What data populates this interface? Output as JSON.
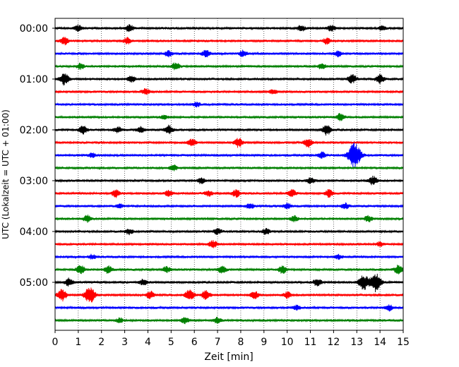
{
  "chart_data": {
    "type": "line",
    "subtype": "helicorder",
    "title": "",
    "xlabel": "Zeit  [min]",
    "ylabel": "UTC (Lokalzeit = UTC + 01:00)",
    "xlim": [
      0,
      15
    ],
    "x_ticks": [
      0,
      1,
      2,
      3,
      4,
      5,
      6,
      7,
      8,
      9,
      10,
      11,
      12,
      13,
      14,
      15
    ],
    "x_tick_labels": [
      "0",
      "1",
      "2",
      "3",
      "4",
      "5",
      "6",
      "7",
      "8",
      "9",
      "10",
      "11",
      "12",
      "13",
      "14",
      "15"
    ],
    "y_tick_labels": [
      "00:00",
      "01:00",
      "02:00",
      "03:00",
      "04:00",
      "05:00"
    ],
    "rows_per_hour": 4,
    "trace_minutes": 15,
    "vertical_grid": "dotted",
    "trace_colors": [
      "#000000",
      "#ff0000",
      "#0000ff",
      "#008000"
    ],
    "traces": [
      {
        "index": 0,
        "color": "#000000",
        "events": [
          {
            "t": 1.0,
            "amp": 0.4
          },
          {
            "t": 3.2,
            "amp": 0.5
          },
          {
            "t": 10.6,
            "amp": 0.4
          },
          {
            "t": 11.9,
            "amp": 0.4
          },
          {
            "t": 14.1,
            "amp": 0.3
          }
        ]
      },
      {
        "index": 1,
        "color": "#ff0000",
        "events": [
          {
            "t": 0.4,
            "amp": 0.5
          },
          {
            "t": 3.1,
            "amp": 0.4
          },
          {
            "t": 11.7,
            "amp": 0.4
          }
        ]
      },
      {
        "index": 2,
        "color": "#0000ff",
        "events": [
          {
            "t": 4.9,
            "amp": 0.4
          },
          {
            "t": 6.5,
            "amp": 0.5
          },
          {
            "t": 8.1,
            "amp": 0.4
          },
          {
            "t": 12.2,
            "amp": 0.4
          }
        ]
      },
      {
        "index": 3,
        "color": "#008000",
        "events": [
          {
            "t": 1.1,
            "amp": 0.4
          },
          {
            "t": 5.2,
            "amp": 0.5
          },
          {
            "t": 11.5,
            "amp": 0.4
          }
        ]
      },
      {
        "index": 4,
        "color": "#000000",
        "events": [
          {
            "t": 0.4,
            "amp": 0.8
          },
          {
            "t": 3.3,
            "amp": 0.4
          },
          {
            "t": 12.8,
            "amp": 0.6
          },
          {
            "t": 14.0,
            "amp": 0.6
          }
        ]
      },
      {
        "index": 5,
        "color": "#ff0000",
        "events": [
          {
            "t": 3.9,
            "amp": 0.4
          },
          {
            "t": 9.4,
            "amp": 0.3
          }
        ]
      },
      {
        "index": 6,
        "color": "#0000ff",
        "events": [
          {
            "t": 6.1,
            "amp": 0.3
          }
        ]
      },
      {
        "index": 7,
        "color": "#008000",
        "events": [
          {
            "t": 12.3,
            "amp": 0.5
          },
          {
            "t": 4.7,
            "amp": 0.3
          }
        ]
      },
      {
        "index": 8,
        "color": "#000000",
        "events": [
          {
            "t": 1.2,
            "amp": 0.6
          },
          {
            "t": 4.9,
            "amp": 0.6
          },
          {
            "t": 11.7,
            "amp": 0.7
          },
          {
            "t": 3.7,
            "amp": 0.4
          },
          {
            "t": 2.7,
            "amp": 0.4
          }
        ]
      },
      {
        "index": 9,
        "color": "#ff0000",
        "events": [
          {
            "t": 5.9,
            "amp": 0.5
          },
          {
            "t": 7.9,
            "amp": 0.6
          },
          {
            "t": 10.9,
            "amp": 0.6
          }
        ]
      },
      {
        "index": 10,
        "color": "#0000ff",
        "events": [
          {
            "t": 12.9,
            "amp": 1.8
          },
          {
            "t": 11.5,
            "amp": 0.4
          },
          {
            "t": 1.6,
            "amp": 0.3
          }
        ]
      },
      {
        "index": 11,
        "color": "#008000",
        "events": [
          {
            "t": 5.1,
            "amp": 0.4
          }
        ]
      },
      {
        "index": 12,
        "color": "#000000",
        "events": [
          {
            "t": 6.3,
            "amp": 0.4
          },
          {
            "t": 13.7,
            "amp": 0.6
          },
          {
            "t": 11.0,
            "amp": 0.4
          }
        ]
      },
      {
        "index": 13,
        "color": "#ff0000",
        "events": [
          {
            "t": 2.6,
            "amp": 0.5
          },
          {
            "t": 4.9,
            "amp": 0.4
          },
          {
            "t": 7.8,
            "amp": 0.5
          },
          {
            "t": 10.2,
            "amp": 0.5
          },
          {
            "t": 11.8,
            "amp": 0.5
          },
          {
            "t": 6.6,
            "amp": 0.4
          }
        ]
      },
      {
        "index": 14,
        "color": "#0000ff",
        "events": [
          {
            "t": 8.4,
            "amp": 0.4
          },
          {
            "t": 10.0,
            "amp": 0.4
          },
          {
            "t": 12.5,
            "amp": 0.4
          },
          {
            "t": 2.8,
            "amp": 0.3
          }
        ]
      },
      {
        "index": 15,
        "color": "#008000",
        "events": [
          {
            "t": 1.4,
            "amp": 0.5
          },
          {
            "t": 10.3,
            "amp": 0.4
          },
          {
            "t": 13.5,
            "amp": 0.4
          }
        ]
      },
      {
        "index": 16,
        "color": "#000000",
        "events": [
          {
            "t": 3.2,
            "amp": 0.4
          },
          {
            "t": 7.0,
            "amp": 0.4
          },
          {
            "t": 9.1,
            "amp": 0.4
          }
        ]
      },
      {
        "index": 17,
        "color": "#ff0000",
        "events": [
          {
            "t": 6.8,
            "amp": 0.5
          },
          {
            "t": 14.0,
            "amp": 0.3
          }
        ]
      },
      {
        "index": 18,
        "color": "#0000ff",
        "events": [
          {
            "t": 1.6,
            "amp": 0.3
          },
          {
            "t": 12.2,
            "amp": 0.3
          }
        ]
      },
      {
        "index": 19,
        "color": "#008000",
        "events": [
          {
            "t": 1.1,
            "amp": 0.6
          },
          {
            "t": 2.3,
            "amp": 0.5
          },
          {
            "t": 7.2,
            "amp": 0.5
          },
          {
            "t": 9.8,
            "amp": 0.5
          },
          {
            "t": 14.8,
            "amp": 0.6
          },
          {
            "t": 4.8,
            "amp": 0.4
          }
        ]
      },
      {
        "index": 20,
        "color": "#000000",
        "events": [
          {
            "t": 0.6,
            "amp": 0.5
          },
          {
            "t": 13.3,
            "amp": 1.0
          },
          {
            "t": 13.8,
            "amp": 1.3
          },
          {
            "t": 11.3,
            "amp": 0.5
          },
          {
            "t": 3.8,
            "amp": 0.4
          }
        ]
      },
      {
        "index": 21,
        "color": "#ff0000",
        "events": [
          {
            "t": 0.3,
            "amp": 0.8
          },
          {
            "t": 1.5,
            "amp": 1.2
          },
          {
            "t": 4.1,
            "amp": 0.5
          },
          {
            "t": 5.8,
            "amp": 0.8
          },
          {
            "t": 6.5,
            "amp": 0.6
          },
          {
            "t": 8.6,
            "amp": 0.5
          },
          {
            "t": 10.0,
            "amp": 0.4
          }
        ]
      },
      {
        "index": 22,
        "color": "#0000ff",
        "events": [
          {
            "t": 14.4,
            "amp": 0.4
          },
          {
            "t": 10.4,
            "amp": 0.3
          }
        ]
      },
      {
        "index": 23,
        "color": "#008000",
        "events": [
          {
            "t": 5.6,
            "amp": 0.4
          },
          {
            "t": 7.0,
            "amp": 0.4
          },
          {
            "t": 2.8,
            "amp": 0.3
          }
        ]
      }
    ]
  }
}
